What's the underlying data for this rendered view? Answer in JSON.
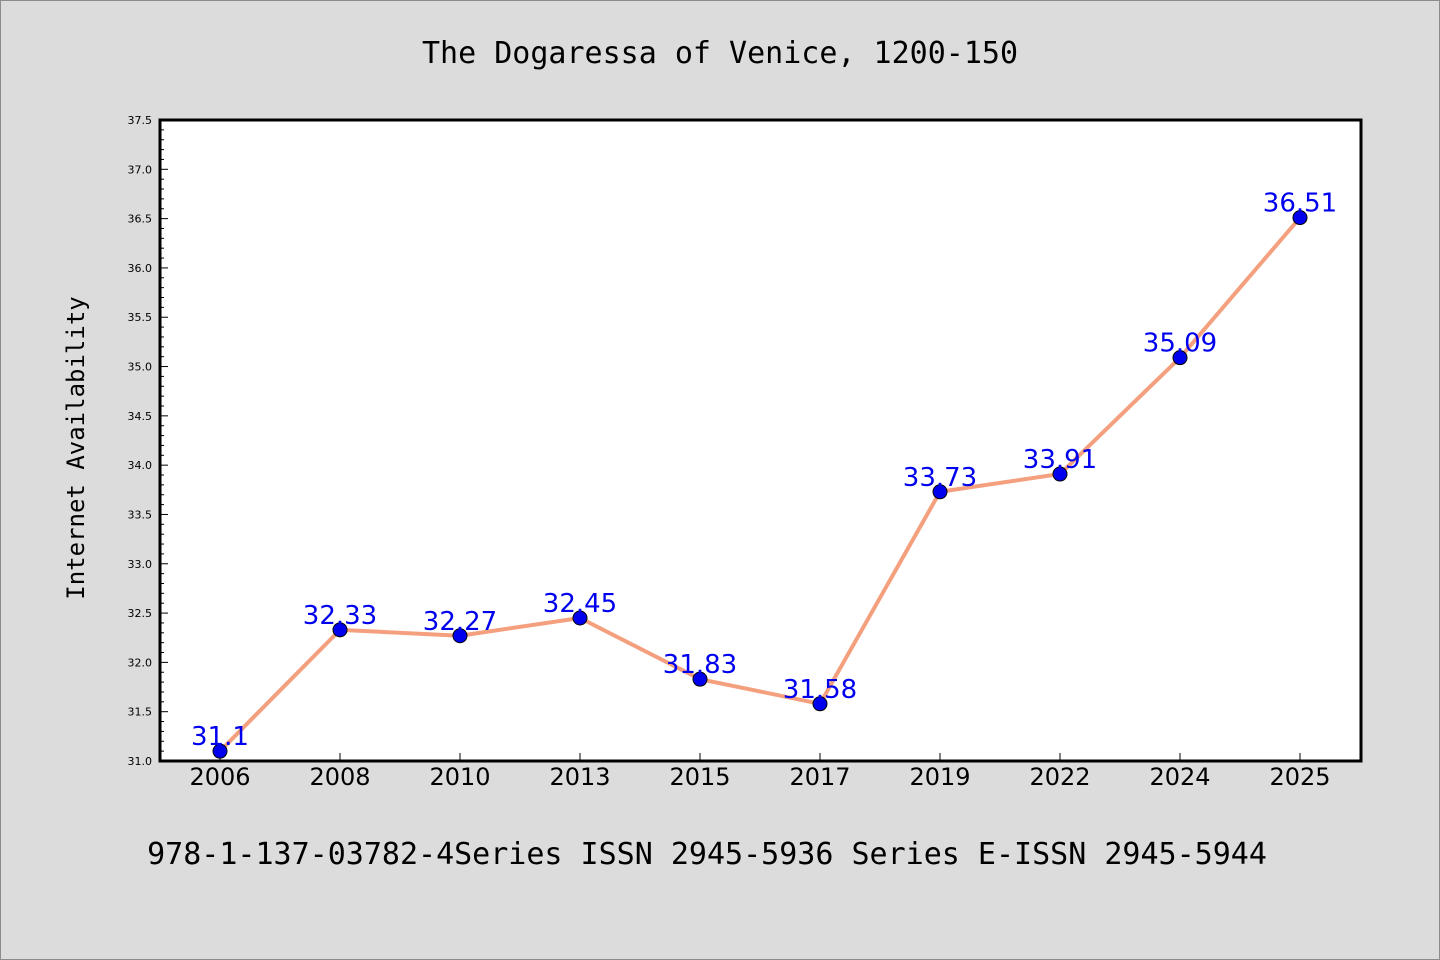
{
  "chart_data": {
    "type": "line",
    "title": "The Dogaressa of Venice, 1200-150",
    "xlabel": "",
    "ylabel": "Internet Availability",
    "categories": [
      "2006",
      "2008",
      "2010",
      "2013",
      "2015",
      "2017",
      "2019",
      "2022",
      "2024",
      "2025"
    ],
    "series": [
      {
        "values": [
          31.1,
          32.33,
          32.27,
          32.45,
          31.83,
          31.58,
          33.73,
          33.91,
          35.09,
          36.51
        ],
        "data_labels": [
          "31.1",
          "32.33",
          "32.27",
          "32.45",
          "31.83",
          "31.58",
          "33.73",
          "33.91",
          "35.09",
          "36.51"
        ]
      }
    ],
    "ylim": [
      31.0,
      37.5
    ],
    "yticks": [
      "31.0",
      "31.5",
      "32.0",
      "32.5",
      "33.0",
      "33.5",
      "34.0",
      "34.5",
      "35.0",
      "35.5",
      "36.0",
      "36.5",
      "37.0",
      "37.5"
    ],
    "grid": false,
    "legend": "none",
    "colors": {
      "line": "#f4a07e",
      "marker": "#0000ee",
      "label": "#0000ee",
      "background": "#dcdcdc",
      "plot_background": "#ffffff"
    }
  },
  "footer": "978-1-137-03782-4Series ISSN 2945-5936 Series E-ISSN 2945-5944"
}
